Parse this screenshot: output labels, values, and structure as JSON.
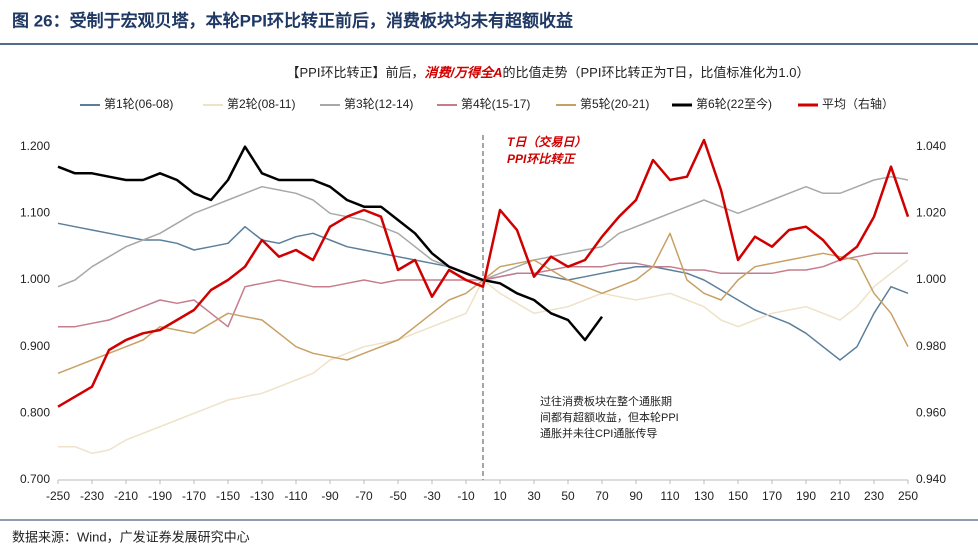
{
  "chart_data": {
    "type": "line",
    "title": "图 26：受制于宏观贝塔，本轮PPI环比转正前后，消费板块均未有超额收益",
    "subtitle": [
      "【PPI环比转正】前后，",
      "消费/万得全A",
      "的比值走势（PPI环比转正为T日，比值标准化为1.0）"
    ],
    "annotations": [
      "T日（交易日）",
      "PPI环比转正"
    ],
    "note": [
      "过往消费板块在整个通胀期",
      "间都有超额收益，但本轮PPI",
      "通胀并未往CPI通胀传导"
    ],
    "source": "数据来源：Wind，广发证券发展研究中心",
    "vline": 0,
    "x": [
      -250,
      -240,
      -230,
      -220,
      -210,
      -200,
      -190,
      -180,
      -170,
      -160,
      -150,
      -140,
      -130,
      -120,
      -110,
      -100,
      -90,
      -80,
      -70,
      -60,
      -50,
      -40,
      -30,
      -20,
      -10,
      0,
      10,
      20,
      30,
      40,
      50,
      60,
      70,
      80,
      90,
      100,
      110,
      120,
      130,
      140,
      150,
      160,
      170,
      180,
      190,
      200,
      210,
      220,
      230,
      240,
      250
    ],
    "xlim": [
      -250,
      250
    ],
    "xticks": [
      -250,
      -230,
      -210,
      -190,
      -170,
      -150,
      -130,
      -110,
      -90,
      -70,
      -50,
      -30,
      -10,
      10,
      30,
      50,
      70,
      90,
      110,
      130,
      150,
      170,
      190,
      210,
      230,
      250
    ],
    "ylim": [
      0.7,
      1.225
    ],
    "yticks": [
      {
        "value": 0.7,
        "label": "0.700"
      },
      {
        "value": 0.8,
        "label": "0.800"
      },
      {
        "value": 0.9,
        "label": "0.900"
      },
      {
        "value": 1.0,
        "label": "1.000"
      },
      {
        "value": 1.1,
        "label": "1.100"
      },
      {
        "value": 1.2,
        "label": "1.200"
      }
    ],
    "y2lim": [
      0.94,
      1.045
    ],
    "y2ticks": [
      {
        "value": 0.94,
        "label": "0.940"
      },
      {
        "value": 0.96,
        "label": "0.960"
      },
      {
        "value": 0.98,
        "label": "0.980"
      },
      {
        "value": 1.0,
        "label": "1.000"
      },
      {
        "value": 1.02,
        "label": "1.020"
      },
      {
        "value": 1.04,
        "label": "1.040"
      }
    ],
    "grid": false,
    "series": [
      {
        "name": "第1轮(06-08)",
        "color": "#5b7f9b",
        "values": [
          1.085,
          1.08,
          1.075,
          1.07,
          1.065,
          1.06,
          1.06,
          1.055,
          1.045,
          1.05,
          1.055,
          1.08,
          1.06,
          1.055,
          1.065,
          1.07,
          1.06,
          1.05,
          1.045,
          1.04,
          1.035,
          1.03,
          1.025,
          1.02,
          1.01,
          1.0,
          1.005,
          1.01,
          1.01,
          1.005,
          1.0,
          1.005,
          1.01,
          1.015,
          1.02,
          1.02,
          1.015,
          1.01,
          1.0,
          0.985,
          0.97,
          0.955,
          0.945,
          0.935,
          0.92,
          0.9,
          0.88,
          0.9,
          0.95,
          0.99,
          0.98
        ]
      },
      {
        "name": "第2轮(08-11)",
        "color": "#efe2c8",
        "values": [
          0.75,
          0.75,
          0.74,
          0.745,
          0.76,
          0.77,
          0.78,
          0.79,
          0.8,
          0.81,
          0.82,
          0.825,
          0.83,
          0.84,
          0.85,
          0.86,
          0.88,
          0.89,
          0.9,
          0.905,
          0.91,
          0.92,
          0.93,
          0.94,
          0.95,
          1.0,
          0.98,
          0.965,
          0.95,
          0.955,
          0.96,
          0.97,
          0.98,
          0.975,
          0.97,
          0.975,
          0.98,
          0.97,
          0.96,
          0.94,
          0.93,
          0.94,
          0.95,
          0.955,
          0.96,
          0.95,
          0.94,
          0.96,
          0.99,
          1.01,
          1.03
        ]
      },
      {
        "name": "第3轮(12-14)",
        "color": "#a8a8a8",
        "values": [
          0.99,
          1.0,
          1.02,
          1.035,
          1.05,
          1.06,
          1.07,
          1.085,
          1.1,
          1.11,
          1.12,
          1.13,
          1.14,
          1.135,
          1.13,
          1.12,
          1.1,
          1.095,
          1.09,
          1.08,
          1.07,
          1.05,
          1.03,
          1.02,
          1.01,
          1.0,
          1.01,
          1.02,
          1.03,
          1.035,
          1.04,
          1.045,
          1.05,
          1.07,
          1.08,
          1.09,
          1.1,
          1.11,
          1.12,
          1.11,
          1.1,
          1.11,
          1.12,
          1.13,
          1.14,
          1.13,
          1.13,
          1.14,
          1.15,
          1.155,
          1.15
        ]
      },
      {
        "name": "第4轮(15-17)",
        "color": "#c57d8c",
        "values": [
          0.93,
          0.93,
          0.935,
          0.94,
          0.95,
          0.96,
          0.97,
          0.965,
          0.97,
          0.95,
          0.93,
          0.99,
          0.995,
          1.0,
          0.995,
          0.99,
          0.99,
          0.995,
          1.0,
          0.995,
          1.0,
          1.0,
          1.0,
          1.0,
          1.0,
          1.0,
          1.005,
          1.01,
          1.01,
          1.015,
          1.02,
          1.02,
          1.02,
          1.025,
          1.025,
          1.02,
          1.02,
          1.015,
          1.015,
          1.01,
          1.01,
          1.01,
          1.01,
          1.015,
          1.015,
          1.02,
          1.03,
          1.035,
          1.04,
          1.04,
          1.04
        ]
      },
      {
        "name": "第5轮(20-21)",
        "color": "#c9a063",
        "values": [
          0.86,
          0.87,
          0.88,
          0.89,
          0.9,
          0.91,
          0.93,
          0.925,
          0.92,
          0.935,
          0.95,
          0.945,
          0.94,
          0.92,
          0.9,
          0.89,
          0.885,
          0.88,
          0.89,
          0.9,
          0.91,
          0.93,
          0.95,
          0.97,
          0.98,
          1.0,
          1.02,
          1.025,
          1.03,
          1.015,
          1.0,
          0.99,
          0.98,
          0.99,
          1.0,
          1.02,
          1.07,
          1.0,
          0.98,
          0.97,
          1.0,
          1.02,
          1.025,
          1.03,
          1.035,
          1.04,
          1.035,
          1.03,
          0.98,
          0.95,
          0.9
        ]
      },
      {
        "name": "第6轮(22至今)",
        "color": "#000000",
        "values": [
          1.17,
          1.16,
          1.16,
          1.155,
          1.15,
          1.15,
          1.16,
          1.15,
          1.13,
          1.12,
          1.15,
          1.2,
          1.16,
          1.15,
          1.15,
          1.15,
          1.14,
          1.12,
          1.11,
          1.11,
          1.09,
          1.07,
          1.04,
          1.02,
          1.01,
          1.0,
          0.995,
          0.98,
          0.97,
          0.95,
          0.94,
          0.91,
          0.945,
          null,
          null,
          null,
          null,
          null,
          null,
          null,
          null,
          null,
          null,
          null,
          null,
          null,
          null,
          null,
          null,
          null,
          null
        ]
      },
      {
        "name": "平均（右轴）",
        "color": "#d00000",
        "axis": "y2",
        "values": [
          0.962,
          0.965,
          0.968,
          0.979,
          0.982,
          0.984,
          0.985,
          0.988,
          0.991,
          0.997,
          1.0,
          1.004,
          1.012,
          1.007,
          1.009,
          1.006,
          1.016,
          1.019,
          1.021,
          1.019,
          1.003,
          1.006,
          0.995,
          1.003,
          1.0,
          0.998,
          1.021,
          1.015,
          1.001,
          1.007,
          1.004,
          1.006,
          1.013,
          1.019,
          1.024,
          1.036,
          1.03,
          1.031,
          1.042,
          1.027,
          1.006,
          1.013,
          1.01,
          1.015,
          1.016,
          1.012,
          1.006,
          1.01,
          1.019,
          1.034,
          1.019
        ]
      }
    ]
  }
}
